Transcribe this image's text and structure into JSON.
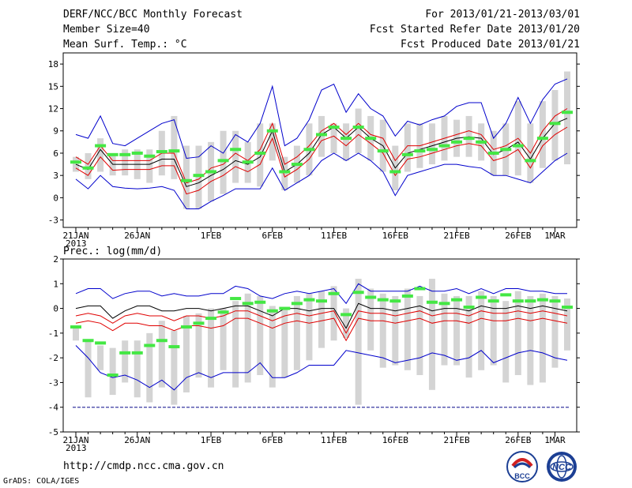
{
  "header": {
    "title": "DERF/NCC/BCC Monthly Forecast",
    "member_size": "Member Size=40",
    "variable": "Mean Surf. Temp.: °C",
    "period": "For 2013/01/21-2013/03/01",
    "start_date": "Fcst Started Refer Date 2013/01/20",
    "produced_date": "Fcst Produced Date 2013/01/21"
  },
  "footer": {
    "url": "http://cmdp.ncc.cma.gov.cn",
    "credit": "GrADS: COLA/IGES",
    "logo_left": "BCC",
    "logo_right": "NCC"
  },
  "colors": {
    "box": "#d4d4d4",
    "median": "#44e744",
    "mean": "#000000",
    "spread": "#e00000",
    "extreme": "#0000cc"
  },
  "chart_data": [
    {
      "type": "box-plume",
      "title": "Mean Surf. Temp.: °C",
      "xlabel": "",
      "ylabel": "Mean Surf. Temp.: °C",
      "xlim": [
        1,
        40
      ],
      "ylim": [
        -4,
        19.5
      ],
      "yticks": [
        -3,
        0,
        3,
        6,
        9,
        12,
        15,
        18
      ],
      "xticks": [
        {
          "day": 1,
          "label": "21JAN"
        },
        {
          "day": 6,
          "label": "26JAN"
        },
        {
          "day": 12,
          "label": "1FEB"
        },
        {
          "day": 17,
          "label": "6FEB"
        },
        {
          "day": 22,
          "label": "11FEB"
        },
        {
          "day": 27,
          "label": "16FEB"
        },
        {
          "day": 32,
          "label": "21FEB"
        },
        {
          "day": 37,
          "label": "26FEB"
        },
        {
          "day": 40,
          "label": "1MAR"
        }
      ],
      "year_label": "2013",
      "series": [
        {
          "name": "max",
          "values": [
            8.5,
            8,
            11,
            7.3,
            7,
            8,
            9,
            10,
            10.5,
            5.3,
            5.5,
            7,
            6,
            8.5,
            7.5,
            10,
            15,
            7,
            8,
            10.5,
            14.5,
            15.3,
            11.5,
            14,
            12,
            11,
            8.3,
            10.3,
            9.8,
            10.5,
            11,
            12.3,
            12.8,
            12.8,
            8,
            10,
            13.5,
            10,
            13.2,
            15.3,
            16
          ]
        },
        {
          "name": "upper",
          "values": [
            5.5,
            4.5,
            7,
            5,
            5,
            5,
            5,
            6,
            6,
            2,
            2.5,
            4,
            4.5,
            6,
            5,
            6.5,
            10,
            4.5,
            5.5,
            7,
            9,
            10,
            8.5,
            10,
            8.5,
            8,
            5,
            7,
            7,
            7.5,
            8,
            8.5,
            9,
            8.5,
            6.5,
            7,
            8,
            6,
            9,
            11,
            12
          ]
        },
        {
          "name": "mean",
          "values": [
            4.5,
            3.8,
            6.5,
            4.5,
            4.5,
            4.5,
            4.5,
            5.2,
            5.2,
            1.5,
            2,
            3,
            3.8,
            5,
            4.5,
            5.5,
            9,
            3.5,
            4.5,
            6,
            8.5,
            9.5,
            8,
            9.5,
            8,
            7,
            4,
            6,
            6.5,
            7,
            7.5,
            8,
            8.2,
            8,
            5.8,
            6.5,
            7.5,
            5.2,
            8,
            10,
            10.7
          ]
        },
        {
          "name": "lower",
          "values": [
            4,
            3,
            5.5,
            3.7,
            3.8,
            3.8,
            3.8,
            4.3,
            4.3,
            0.5,
            1,
            2.2,
            3,
            4.2,
            3.5,
            4.5,
            8,
            2.8,
            3.8,
            5.2,
            7.7,
            8.3,
            7,
            8.5,
            7.3,
            6,
            3,
            5.2,
            5.5,
            6,
            6.5,
            7,
            7.3,
            7,
            5,
            5.5,
            6.5,
            4,
            7,
            8.5,
            9.5
          ]
        },
        {
          "name": "min",
          "values": [
            2.5,
            1.2,
            3,
            1.5,
            1.3,
            1.2,
            1.3,
            1.5,
            1,
            -1.5,
            -1.5,
            -0.5,
            0.3,
            1.2,
            1.2,
            1.2,
            4,
            1,
            2,
            3,
            5,
            6,
            5,
            6,
            5,
            3.5,
            0.3,
            3,
            3.5,
            4,
            4.5,
            4.5,
            4.2,
            4,
            3,
            3,
            2.5,
            2,
            3.5,
            5,
            6
          ]
        },
        {
          "name": "box_top",
          "values": [
            5.5,
            6,
            8,
            6,
            6.5,
            6.5,
            6.5,
            9,
            11,
            7,
            7,
            7.5,
            9,
            9,
            7.5,
            10,
            10,
            5.5,
            7,
            10,
            11,
            10,
            10,
            12,
            11,
            10.5,
            7,
            10,
            10,
            10,
            11,
            10.5,
            11,
            10,
            9,
            10,
            13,
            10,
            13,
            14.5,
            17
          ]
        },
        {
          "name": "box_bottom",
          "values": [
            3.5,
            2.5,
            3.5,
            3,
            3,
            2.5,
            2,
            3,
            2.5,
            -1.5,
            -1.5,
            -0.5,
            0.5,
            2,
            2,
            1.5,
            5,
            1,
            2,
            3,
            5.5,
            6,
            5,
            6,
            5,
            3.5,
            1,
            3.5,
            4,
            4.5,
            5,
            5.5,
            5.5,
            5,
            3,
            3,
            3,
            2,
            4,
            5,
            4.5
          ]
        },
        {
          "name": "median",
          "values": [
            4.8,
            4,
            7,
            5.8,
            5.8,
            6,
            5.6,
            6.2,
            6.3,
            2.3,
            3,
            3.5,
            5,
            6.5,
            4.8,
            6,
            9,
            3.5,
            4.5,
            6.5,
            8.5,
            9.5,
            8,
            9.5,
            8,
            6.3,
            3.5,
            5.8,
            6.3,
            6.5,
            7,
            7.5,
            8,
            7.5,
            6,
            6.5,
            7,
            5,
            8,
            10,
            11.5
          ]
        }
      ]
    },
    {
      "type": "box-plume",
      "title": "Prec.: log(mm/d)",
      "xlabel": "",
      "ylabel": "Prec.: log(mm/d)",
      "xlim": [
        1,
        40
      ],
      "ylim": [
        -5,
        2
      ],
      "yticks": [
        -5,
        -4,
        -3,
        -2,
        -1,
        0,
        1,
        2
      ],
      "xticks": [
        {
          "day": 1,
          "label": "21JAN"
        },
        {
          "day": 6,
          "label": "26JAN"
        },
        {
          "day": 12,
          "label": "1FEB"
        },
        {
          "day": 17,
          "label": "6FEB"
        },
        {
          "day": 22,
          "label": "11FEB"
        },
        {
          "day": 27,
          "label": "16FEB"
        },
        {
          "day": 32,
          "label": "21FEB"
        },
        {
          "day": 37,
          "label": "26FEB"
        },
        {
          "day": 40,
          "label": "1MAR"
        }
      ],
      "year_label": "2013",
      "floor": -4,
      "series": [
        {
          "name": "max",
          "values": [
            0.6,
            0.8,
            0.8,
            0.4,
            0.6,
            0.7,
            0.7,
            0.5,
            0.6,
            0.5,
            0.5,
            0.6,
            0.6,
            0.9,
            0.8,
            0.5,
            0.4,
            0.6,
            0.7,
            0.6,
            0.7,
            0.8,
            0.2,
            1,
            0.7,
            0.7,
            0.7,
            0.7,
            0.9,
            0.7,
            0.7,
            0.8,
            0.6,
            0.8,
            0.6,
            0.8,
            0.8,
            0.7,
            0.7,
            0.6,
            0.6
          ]
        },
        {
          "name": "mean",
          "values": [
            0,
            0.1,
            0.1,
            -0.4,
            -0.1,
            0.1,
            0.1,
            -0.1,
            -0.1,
            0,
            0,
            -0.1,
            0,
            0.1,
            0.1,
            -0.1,
            -0.3,
            0,
            0,
            -0.1,
            0,
            0,
            -0.8,
            0.2,
            0,
            0,
            -0.1,
            0,
            0.1,
            -0.1,
            0,
            0,
            -0.1,
            0.1,
            0,
            0,
            0.1,
            0,
            0.1,
            0,
            -0.1
          ]
        },
        {
          "name": "upper",
          "values": [
            -0.3,
            -0.2,
            -0.3,
            -0.6,
            -0.3,
            -0.2,
            -0.3,
            -0.3,
            -0.5,
            -0.3,
            -0.3,
            -0.4,
            -0.3,
            -0.1,
            -0.1,
            -0.3,
            -0.5,
            -0.3,
            -0.2,
            -0.3,
            -0.2,
            -0.1,
            -1,
            -0.1,
            -0.2,
            -0.2,
            -0.3,
            -0.2,
            -0.1,
            -0.3,
            -0.2,
            -0.2,
            -0.3,
            -0.1,
            -0.2,
            -0.2,
            -0.1,
            -0.2,
            -0.1,
            -0.2,
            -0.3
          ]
        },
        {
          "name": "lower",
          "values": [
            -0.6,
            -0.5,
            -0.6,
            -0.9,
            -0.6,
            -0.6,
            -0.7,
            -0.7,
            -0.9,
            -0.7,
            -0.7,
            -0.8,
            -0.7,
            -0.4,
            -0.4,
            -0.6,
            -0.8,
            -0.6,
            -0.5,
            -0.6,
            -0.5,
            -0.4,
            -1.3,
            -0.4,
            -0.5,
            -0.5,
            -0.6,
            -0.5,
            -0.4,
            -0.6,
            -0.5,
            -0.5,
            -0.6,
            -0.4,
            -0.5,
            -0.5,
            -0.4,
            -0.5,
            -0.4,
            -0.5,
            -0.6
          ]
        },
        {
          "name": "min",
          "values": [
            -1.5,
            -2,
            -2.6,
            -2.8,
            -2.7,
            -2.9,
            -3.2,
            -2.9,
            -3.3,
            -2.8,
            -2.6,
            -2.8,
            -2.6,
            -2.6,
            -2.6,
            -2.2,
            -2.8,
            -2.8,
            -2.6,
            -2.3,
            -2.3,
            -2.3,
            -1.7,
            -1.8,
            -1.9,
            -2,
            -2.2,
            -2.1,
            -2,
            -1.8,
            -1.9,
            -2.1,
            -2,
            -1.7,
            -2.2,
            -2,
            -1.8,
            -1.7,
            -1.8,
            -2,
            -2.1
          ]
        },
        {
          "name": "box_top",
          "values": [
            -0.7,
            -1.3,
            -1.5,
            -1.6,
            -1.3,
            -1.3,
            -1,
            -0.5,
            -0.9,
            -0.3,
            -0.2,
            0,
            0,
            0.3,
            0.6,
            0.5,
            0.1,
            0,
            0.5,
            0.6,
            0.7,
            0.9,
            0,
            1.2,
            0.8,
            0.6,
            0.5,
            0.8,
            0.5,
            1.2,
            0.6,
            0.5,
            0.5,
            0.7,
            0.5,
            0.3,
            0.7,
            0.5,
            0.6,
            0.5,
            0.4
          ]
        },
        {
          "name": "box_bottom",
          "values": [
            -1.3,
            -3.6,
            -2.5,
            -3.5,
            -3,
            -3.6,
            -3.8,
            -3.2,
            -3.9,
            -3.4,
            -2.8,
            -3.2,
            -2.5,
            -3.2,
            -3,
            -2.7,
            -3.2,
            -2.8,
            -2.5,
            -2.1,
            -1.6,
            -1.3,
            -1.2,
            -3.9,
            -1.7,
            -2.4,
            -2.3,
            -2.5,
            -2.7,
            -3.3,
            -2.3,
            -2.3,
            -2.8,
            -2.5,
            -2.3,
            -3,
            -2.7,
            -3.1,
            -3,
            -2.4,
            -1.7
          ]
        },
        {
          "name": "median",
          "values": [
            -0.75,
            -1.3,
            -1.4,
            -2.7,
            -1.8,
            -1.8,
            -1.5,
            -1.3,
            -1.55,
            -0.75,
            -0.6,
            -0.4,
            -0.15,
            0.4,
            0.2,
            0.25,
            -0.1,
            0,
            0.2,
            0.35,
            0.3,
            0.6,
            -0.25,
            0.65,
            0.45,
            0.35,
            0.3,
            0.5,
            0.8,
            0.25,
            0.2,
            0.35,
            0.05,
            0.45,
            0.3,
            0.55,
            0.3,
            0.3,
            0.35,
            0.3,
            0.05
          ]
        }
      ]
    }
  ]
}
